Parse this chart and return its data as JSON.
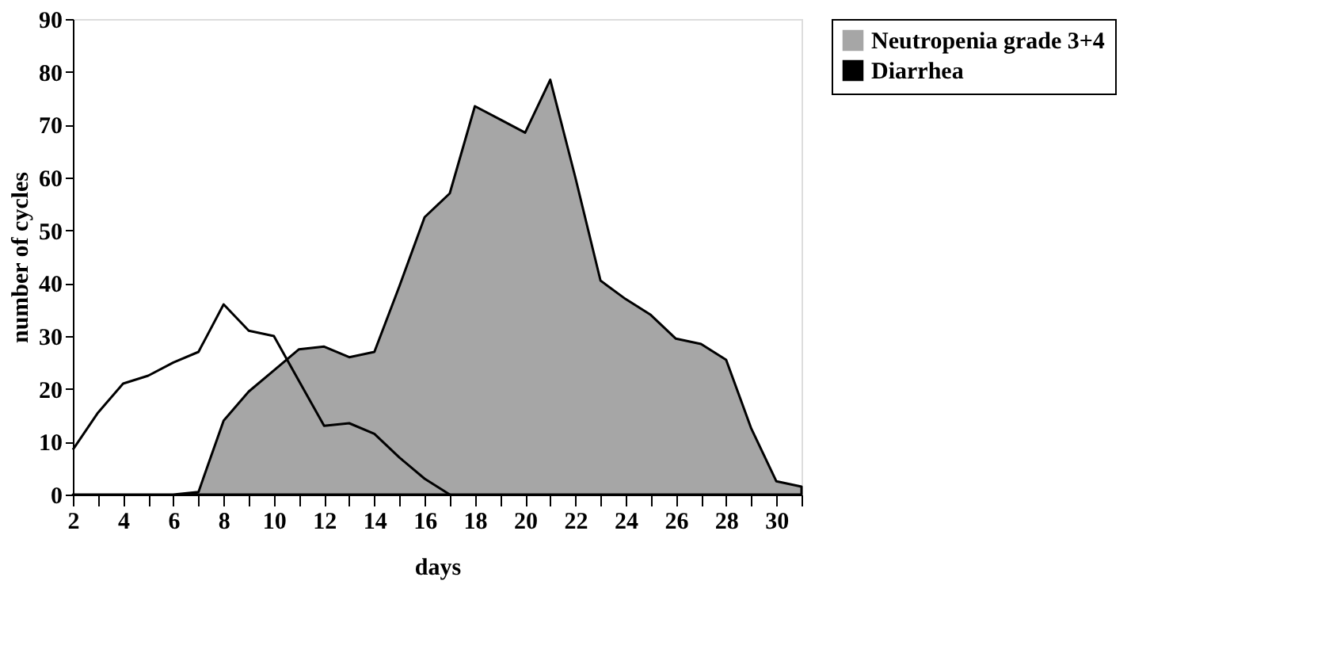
{
  "chart_data": {
    "type": "area",
    "xlabel": "days",
    "ylabel": "number of cycles",
    "xlim": [
      2,
      31
    ],
    "ylim": [
      0,
      90
    ],
    "xticks": [
      2,
      {
        "value": 3,
        "label": null
      },
      4,
      {
        "value": 5,
        "label": null
      },
      6,
      {
        "value": 7,
        "label": null
      },
      8,
      {
        "value": 9,
        "label": null
      },
      10,
      {
        "value": 11,
        "label": null
      },
      12,
      {
        "value": 13,
        "label": null
      },
      14,
      {
        "value": 15,
        "label": null
      },
      16,
      {
        "value": 17,
        "label": null
      },
      18,
      {
        "value": 19,
        "label": null
      },
      20,
      {
        "value": 21,
        "label": null
      },
      22,
      {
        "value": 23,
        "label": null
      },
      24,
      {
        "value": 25,
        "label": null
      },
      26,
      {
        "value": 27,
        "label": null
      },
      28,
      {
        "value": 29,
        "label": null
      },
      30,
      {
        "value": 31,
        "label": null
      }
    ],
    "yticks": [
      0,
      10,
      20,
      30,
      40,
      50,
      60,
      70,
      80,
      90
    ],
    "grid": false,
    "legend": "right",
    "series": [
      {
        "name": "Neutropenia grade 3+4",
        "color": "#a6a6a6",
        "x": [
          2,
          3,
          4,
          5,
          6,
          7,
          8,
          9,
          10,
          11,
          12,
          13,
          14,
          15,
          16,
          17,
          18,
          19,
          20,
          21,
          22,
          23,
          24,
          25,
          26,
          27,
          28,
          29,
          30,
          31
        ],
        "values": [
          0,
          0,
          0,
          0,
          0,
          0.5,
          14,
          19.5,
          23.5,
          27.5,
          28,
          26,
          27,
          39.5,
          52.5,
          57,
          73.5,
          71,
          68.5,
          78.5,
          60,
          40.5,
          37,
          34,
          29.5,
          28.5,
          25.5,
          12.5,
          2.5,
          1.5
        ]
      },
      {
        "name": "Diarrhea",
        "type": "line",
        "color": "#000000",
        "x": [
          2,
          3,
          4,
          5,
          6,
          7,
          8,
          9,
          10,
          11,
          12,
          13,
          14,
          15,
          16,
          17
        ],
        "values": [
          8.5,
          15.5,
          21,
          22.5,
          25,
          27,
          36,
          31,
          30,
          21.5,
          13,
          13.5,
          11.5,
          7,
          3,
          0
        ]
      }
    ]
  }
}
